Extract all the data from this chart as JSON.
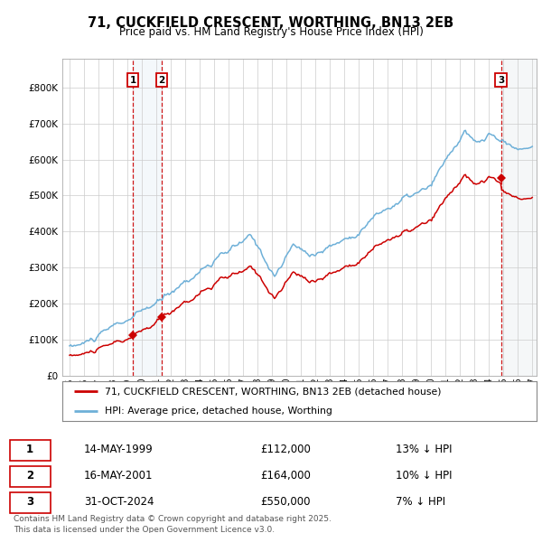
{
  "title": "71, CUCKFIELD CRESCENT, WORTHING, BN13 2EB",
  "subtitle": "Price paid vs. HM Land Registry's House Price Index (HPI)",
  "legend_label_red": "71, CUCKFIELD CRESCENT, WORTHING, BN13 2EB (detached house)",
  "legend_label_blue": "HPI: Average price, detached house, Worthing",
  "sale1_date": "14-MAY-1999",
  "sale1_price": 112000,
  "sale1_pct": "13% ↓ HPI",
  "sale2_date": "16-MAY-2001",
  "sale2_price": 164000,
  "sale2_pct": "10% ↓ HPI",
  "sale3_date": "31-OCT-2024",
  "sale3_price": 550000,
  "sale3_pct": "7% ↓ HPI",
  "footer": "Contains HM Land Registry data © Crown copyright and database right 2025.\nThis data is licensed under the Open Government Licence v3.0.",
  "red_color": "#cc0000",
  "blue_color": "#6eb0d8",
  "bg_color": "#ffffff",
  "grid_color": "#cccccc",
  "ylim": [
    0,
    880000
  ],
  "yticks": [
    0,
    100000,
    200000,
    300000,
    400000,
    500000,
    600000,
    700000,
    800000
  ],
  "xlim_start": 1994.5,
  "xlim_end": 2027.3,
  "sale1_x": 1999.375,
  "sale2_x": 2001.375,
  "sale3_x": 2024.833
}
